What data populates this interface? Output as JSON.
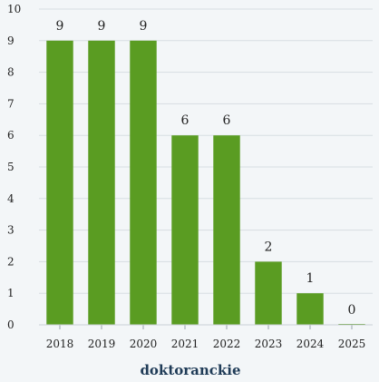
{
  "chart_data": {
    "type": "bar",
    "categories": [
      "2018",
      "2019",
      "2020",
      "2021",
      "2022",
      "2023",
      "2024",
      "2025"
    ],
    "values": [
      9,
      9,
      9,
      6,
      6,
      2,
      1,
      0
    ],
    "data_labels": [
      "9",
      "9",
      "9",
      "6",
      "6",
      "2",
      "1",
      "0"
    ],
    "xlabel": "doktoranckie",
    "ylabel": "",
    "ylim": [
      0,
      10
    ],
    "yticks": [
      "0",
      "1",
      "2",
      "3",
      "4",
      "5",
      "6",
      "7",
      "8",
      "9",
      "10"
    ],
    "grid": true,
    "legend": "none",
    "bar_color": "#5a9c22",
    "grid_color": "#d7dde2"
  }
}
